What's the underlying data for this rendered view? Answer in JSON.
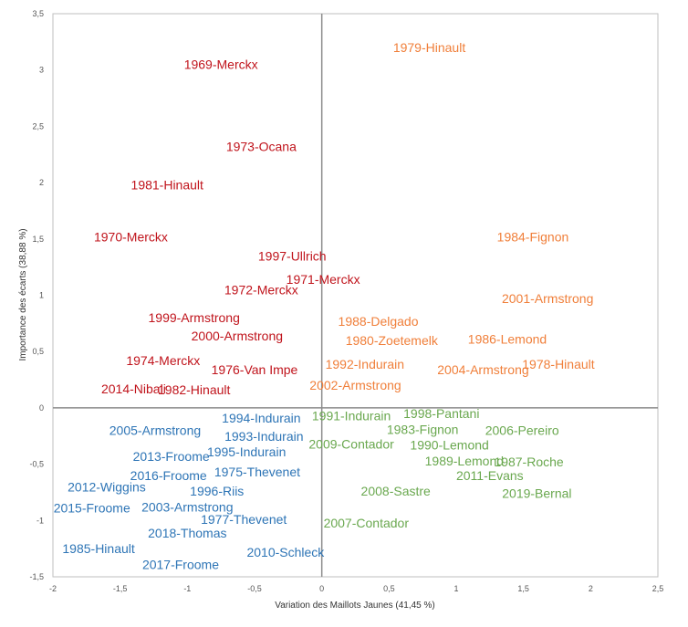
{
  "chart_data": {
    "type": "scatter",
    "xlabel": "Variation des Maillots Jaunes (41,45 %)",
    "ylabel": "Importance des écarts  (38,88 %)",
    "xlim": [
      -2,
      2.5
    ],
    "ylim": [
      -1.5,
      3.5
    ],
    "x_ticks": [
      "-2",
      "-1,5",
      "-1",
      "-0,5",
      "0",
      "0,5",
      "1",
      "1,5",
      "2",
      "2,5"
    ],
    "y_ticks": [
      "-1,5",
      "-1",
      "-0,5",
      "0",
      "0,5",
      "1",
      "1,5",
      "2",
      "2,5",
      "3",
      "3,5"
    ],
    "grid": false,
    "colors": {
      "red": "#c0141c",
      "orange": "#f07f3a",
      "green": "#6aa84f",
      "blue": "#2e75b6"
    },
    "points": [
      {
        "label": "1979-Hinault",
        "x": 0.8,
        "y": 3.2,
        "color": "orange"
      },
      {
        "label": "1969-Merckx",
        "x": -0.75,
        "y": 3.05,
        "color": "red"
      },
      {
        "label": "1973-Ocana",
        "x": -0.45,
        "y": 2.32,
        "color": "red"
      },
      {
        "label": "1981-Hinault",
        "x": -1.15,
        "y": 1.98,
        "color": "red"
      },
      {
        "label": "1970-Merckx",
        "x": -1.42,
        "y": 1.52,
        "color": "red"
      },
      {
        "label": "1984-Fignon",
        "x": 1.57,
        "y": 1.52,
        "color": "orange"
      },
      {
        "label": "1997-Ullrich",
        "x": -0.22,
        "y": 1.35,
        "color": "red"
      },
      {
        "label": "1971-Merckx",
        "x": 0.01,
        "y": 1.14,
        "color": "red"
      },
      {
        "label": "1972-Merckx",
        "x": -0.45,
        "y": 1.05,
        "color": "red"
      },
      {
        "label": "2001-Armstrong",
        "x": 1.68,
        "y": 0.97,
        "color": "orange"
      },
      {
        "label": "1999-Armstrong",
        "x": -0.95,
        "y": 0.8,
        "color": "red"
      },
      {
        "label": "1988-Delgado",
        "x": 0.42,
        "y": 0.77,
        "color": "orange"
      },
      {
        "label": "2000-Armstrong",
        "x": -0.63,
        "y": 0.64,
        "color": "red"
      },
      {
        "label": "1980-Zoetemelk",
        "x": 0.52,
        "y": 0.6,
        "color": "orange"
      },
      {
        "label": "1986-Lemond",
        "x": 1.38,
        "y": 0.61,
        "color": "orange"
      },
      {
        "label": "1974-Merckx",
        "x": -1.18,
        "y": 0.42,
        "color": "red"
      },
      {
        "label": "1992-Indurain",
        "x": 0.32,
        "y": 0.39,
        "color": "orange"
      },
      {
        "label": "1978-Hinault",
        "x": 1.76,
        "y": 0.39,
        "color": "orange"
      },
      {
        "label": "2004-Armstrong",
        "x": 1.2,
        "y": 0.34,
        "color": "orange"
      },
      {
        "label": "1976-Van Impe",
        "x": -0.5,
        "y": 0.34,
        "color": "red"
      },
      {
        "label": "2002-Armstrong",
        "x": 0.25,
        "y": 0.2,
        "color": "orange"
      },
      {
        "label": "2014-Nibali",
        "x": -1.4,
        "y": 0.17,
        "color": "red"
      },
      {
        "label": "1982-Hinault",
        "x": -0.95,
        "y": 0.16,
        "color": "red"
      },
      {
        "label": "1998-Pantani",
        "x": 0.89,
        "y": -0.05,
        "color": "green"
      },
      {
        "label": "1991-Indurain",
        "x": 0.22,
        "y": -0.07,
        "color": "green"
      },
      {
        "label": "1994-Indurain",
        "x": -0.45,
        "y": -0.09,
        "color": "blue"
      },
      {
        "label": "1983-Fignon",
        "x": 0.75,
        "y": -0.19,
        "color": "green"
      },
      {
        "label": "2006-Pereiro",
        "x": 1.49,
        "y": -0.2,
        "color": "green"
      },
      {
        "label": "2005-Armstrong",
        "x": -1.24,
        "y": -0.2,
        "color": "blue"
      },
      {
        "label": "1993-Indurain",
        "x": -0.43,
        "y": -0.25,
        "color": "blue"
      },
      {
        "label": "2009-Contador",
        "x": 0.22,
        "y": -0.32,
        "color": "green"
      },
      {
        "label": "1990-Lemond",
        "x": 0.95,
        "y": -0.33,
        "color": "green"
      },
      {
        "label": "1995-Indurain",
        "x": -0.56,
        "y": -0.39,
        "color": "blue"
      },
      {
        "label": "2013-Froome",
        "x": -1.12,
        "y": -0.43,
        "color": "blue"
      },
      {
        "label": "1989-Lemond",
        "x": 1.06,
        "y": -0.47,
        "color": "green"
      },
      {
        "label": "1987-Roche",
        "x": 1.54,
        "y": -0.48,
        "color": "green"
      },
      {
        "label": "1975-Thevenet",
        "x": -0.48,
        "y": -0.57,
        "color": "blue"
      },
      {
        "label": "2016-Froome",
        "x": -1.14,
        "y": -0.6,
        "color": "blue"
      },
      {
        "label": "2011-Evans",
        "x": 1.25,
        "y": -0.6,
        "color": "green"
      },
      {
        "label": "2012-Wiggins",
        "x": -1.6,
        "y": -0.7,
        "color": "blue"
      },
      {
        "label": "1996-Riis",
        "x": -0.78,
        "y": -0.74,
        "color": "blue"
      },
      {
        "label": "2008-Sastre",
        "x": 0.55,
        "y": -0.74,
        "color": "green"
      },
      {
        "label": "2019-Bernal",
        "x": 1.6,
        "y": -0.76,
        "color": "green"
      },
      {
        "label": "2003-Armstrong",
        "x": -1.0,
        "y": -0.88,
        "color": "blue"
      },
      {
        "label": "2015-Froome",
        "x": -1.71,
        "y": -0.89,
        "color": "blue"
      },
      {
        "label": "1977-Thevenet",
        "x": -0.58,
        "y": -0.99,
        "color": "blue"
      },
      {
        "label": "2007-Contador",
        "x": 0.33,
        "y": -1.02,
        "color": "green"
      },
      {
        "label": "2018-Thomas",
        "x": -1.0,
        "y": -1.11,
        "color": "blue"
      },
      {
        "label": "1985-Hinault",
        "x": -1.66,
        "y": -1.25,
        "color": "blue"
      },
      {
        "label": "2010-Schleck",
        "x": -0.27,
        "y": -1.28,
        "color": "blue"
      },
      {
        "label": "2017-Froome",
        "x": -1.05,
        "y": -1.39,
        "color": "blue"
      }
    ]
  }
}
